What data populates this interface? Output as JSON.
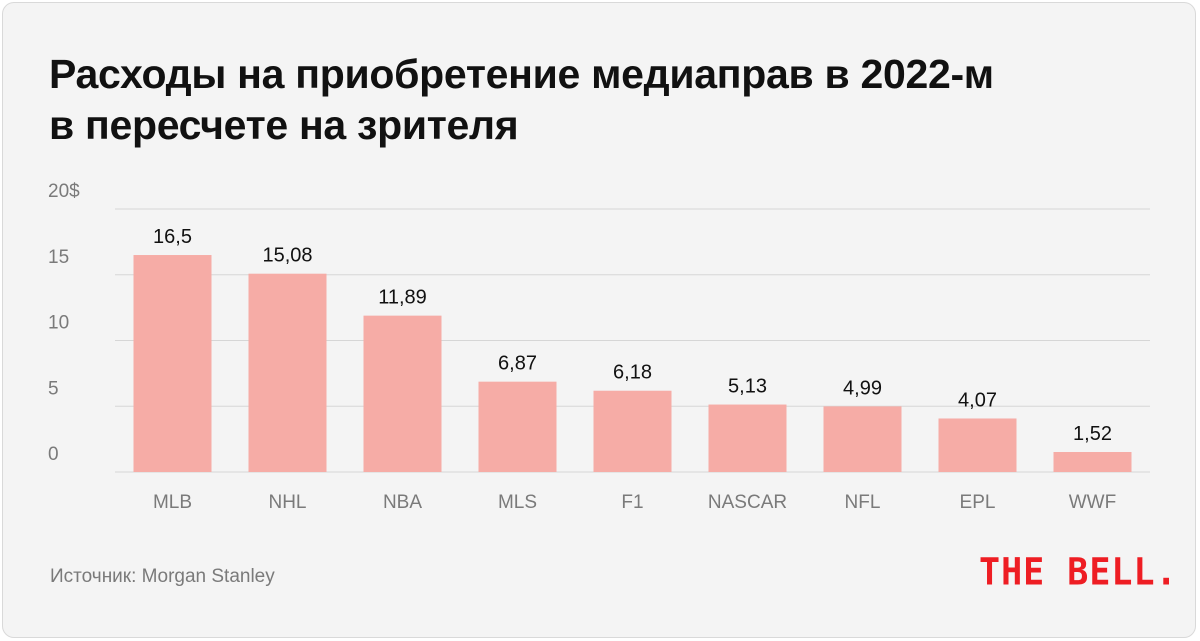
{
  "title_lines": [
    "Расходы на приобретение медиаправ в 2022-м",
    "в пересчете на зрителя"
  ],
  "source": "Источник: Morgan Stanley",
  "logo": "THE BELL.",
  "colors": {
    "bar": "#f6aca6",
    "grid": "#d6d6d6",
    "axis_text": "#7a7a7a",
    "label_text": "#111111",
    "background": "#f4f4f4",
    "logo": "#ee1d23"
  },
  "chart_data": {
    "type": "bar",
    "categories": [
      "MLB",
      "NHL",
      "NBA",
      "MLS",
      "F1",
      "NASCAR",
      "NFL",
      "EPL",
      "WWF"
    ],
    "values": [
      16.5,
      15.08,
      11.89,
      6.87,
      6.18,
      5.13,
      4.99,
      4.07,
      1.52
    ],
    "value_labels": [
      "16,5",
      "15,08",
      "11,89",
      "6,87",
      "6,18",
      "5,13",
      "4,99",
      "4,07",
      "1,52"
    ],
    "yticks": [
      0,
      5,
      10,
      15,
      20
    ],
    "ytick_labels": [
      "0",
      "5",
      "10",
      "15",
      "20$"
    ],
    "ylim": [
      0,
      20
    ],
    "grid": true,
    "title": "Расходы на приобретение медиаправ в 2022-м в пересчете на зрителя"
  }
}
